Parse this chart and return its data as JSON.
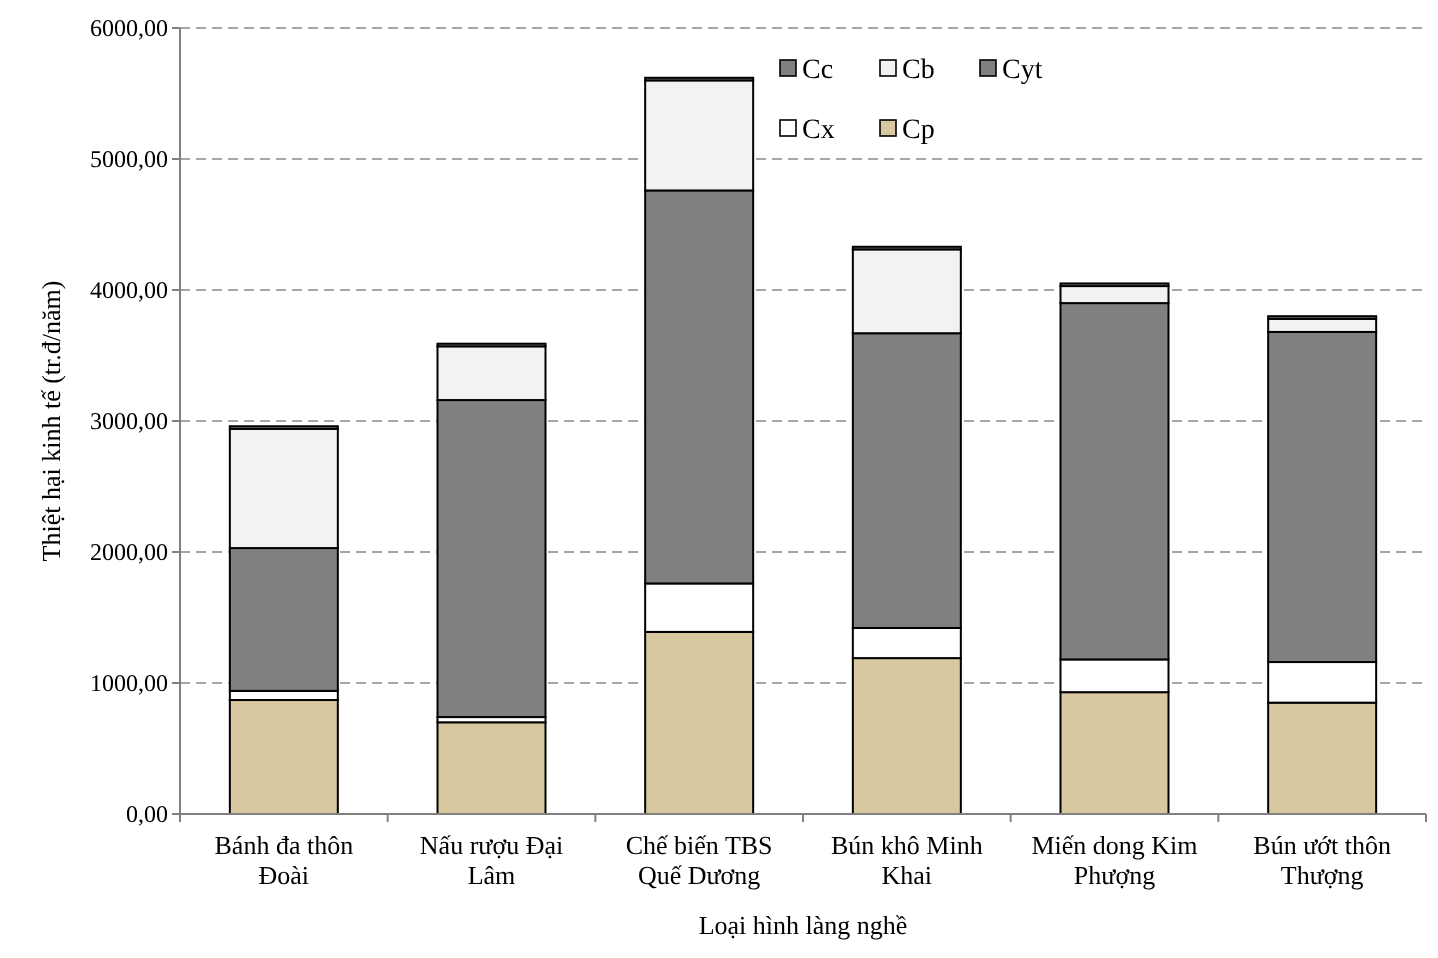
{
  "chart_data": {
    "type": "bar",
    "stacked": true,
    "xlabel": "Loại hình làng nghề",
    "ylabel": "Thiệt hại kinh tế (tr.đ/năm)",
    "categories": [
      "Bánh đa thôn Đoài",
      "Nấu rượu Đại Lâm",
      "Chế biến TBS Quế Dương",
      "Bún khô Minh Khai",
      "Miến dong Kim Phượng",
      "Bún ướt thôn Thượng"
    ],
    "series": [
      {
        "name": "Cp",
        "color": "#d8c8a0",
        "values": [
          870,
          700,
          1390,
          1190,
          930,
          850
        ]
      },
      {
        "name": "Cx",
        "color": "#ffffff",
        "values": [
          70,
          40,
          370,
          230,
          250,
          310
        ]
      },
      {
        "name": "Cyt",
        "color": "#808080",
        "values": [
          1090,
          2420,
          3000,
          2250,
          2720,
          2520
        ]
      },
      {
        "name": "Cb",
        "color": "#f2f2f2",
        "values": [
          910,
          410,
          840,
          640,
          130,
          100
        ]
      },
      {
        "name": "Cc",
        "color": "#808080",
        "values": [
          20,
          20,
          20,
          20,
          20,
          20
        ]
      }
    ],
    "ylim": [
      0,
      6000
    ],
    "yticks": [
      {
        "value": 0,
        "label": "0,00"
      },
      {
        "value": 1000,
        "label": "1000,00"
      },
      {
        "value": 2000,
        "label": "2000,00"
      },
      {
        "value": 3000,
        "label": "3000,00"
      },
      {
        "value": 4000,
        "label": "4000,00"
      },
      {
        "value": 5000,
        "label": "5000,00"
      },
      {
        "value": 6000,
        "label": "6000,00"
      }
    ],
    "grid": "y",
    "legend": "top right"
  }
}
